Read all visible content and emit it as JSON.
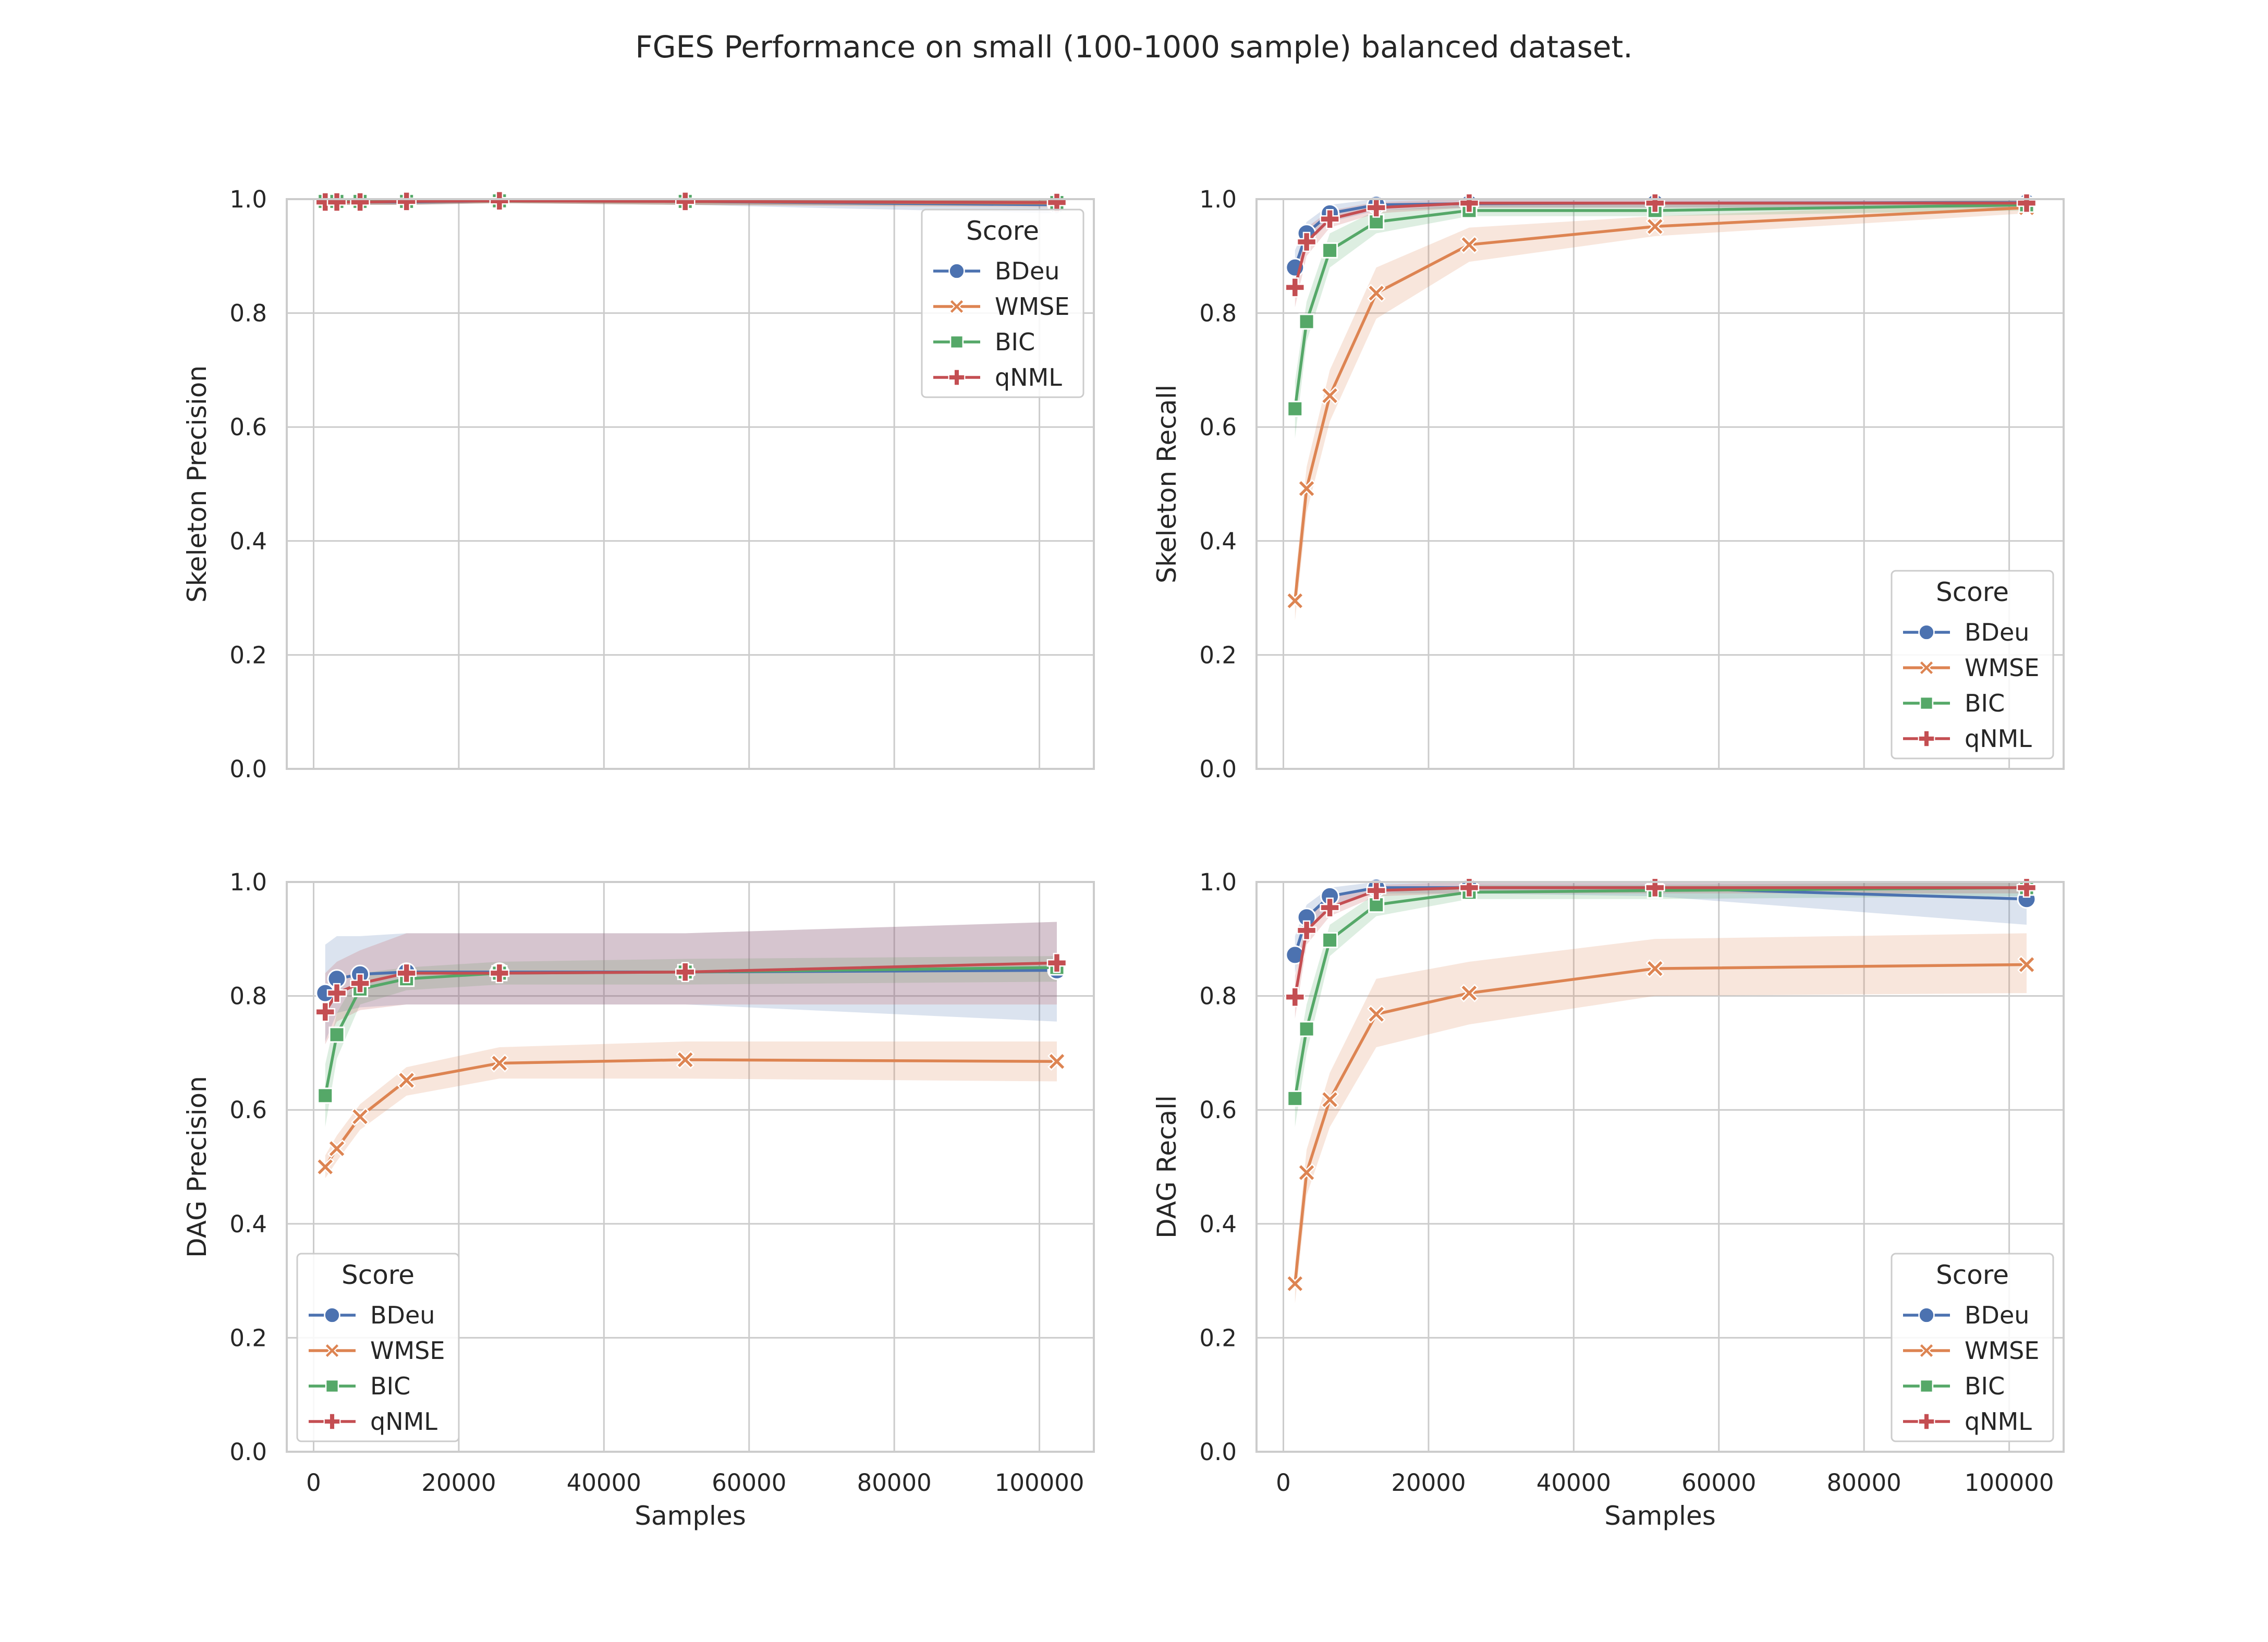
{
  "title": "FGES Performance on small (100-1000 sample) balanced dataset.",
  "colors": {
    "BDeu": "#4c72b0",
    "WMSE": "#dd8452",
    "BIC": "#55a868",
    "qNML": "#c44e52",
    "grid": "#cccccc",
    "frame": "#cccccc"
  },
  "chart_data": [
    {
      "type": "line",
      "ylabel": "Skeleton Precision",
      "xlabel": "",
      "xlim": [
        -3700,
        107500
      ],
      "ylim": [
        0,
        1
      ],
      "xticks": [
        0,
        20000,
        40000,
        60000,
        80000,
        100000
      ],
      "yticks": [
        "0.0",
        "0.2",
        "0.4",
        "0.6",
        "0.8",
        "1.0"
      ],
      "show_xtick_labels": false,
      "grid": true,
      "legend": {
        "title": "Score",
        "placement": "top-right"
      },
      "x": [
        1600,
        3200,
        6400,
        12800,
        25600,
        51200,
        102400
      ],
      "series": [
        {
          "name": "BDeu",
          "marker": "circle",
          "values": [
            0.995,
            0.995,
            0.995,
            0.995,
            0.997,
            0.996,
            0.99
          ],
          "ci_low": [
            0.99,
            0.99,
            0.99,
            0.99,
            0.993,
            0.99,
            0.975
          ],
          "ci_high": [
            1.0,
            1.0,
            1.0,
            1.0,
            1.0,
            1.0,
            1.0
          ]
        },
        {
          "name": "WMSE",
          "marker": "x",
          "values": [
            0.995,
            0.995,
            0.995,
            0.996,
            0.997,
            0.996,
            0.993
          ],
          "ci_low": [
            0.99,
            0.99,
            0.99,
            0.99,
            0.993,
            0.99,
            0.985
          ],
          "ci_high": [
            1.0,
            1.0,
            1.0,
            1.0,
            1.0,
            1.0,
            1.0
          ]
        },
        {
          "name": "BIC",
          "marker": "square",
          "values": [
            0.996,
            0.996,
            0.996,
            0.996,
            0.997,
            0.996,
            0.994
          ],
          "ci_low": [
            0.99,
            0.99,
            0.99,
            0.99,
            0.993,
            0.99,
            0.988
          ],
          "ci_high": [
            1.0,
            1.0,
            1.0,
            1.0,
            1.0,
            1.0,
            1.0
          ]
        },
        {
          "name": "qNML",
          "marker": "plus",
          "values": [
            0.995,
            0.995,
            0.995,
            0.996,
            0.997,
            0.996,
            0.994
          ],
          "ci_low": [
            0.99,
            0.99,
            0.99,
            0.99,
            0.993,
            0.99,
            0.988
          ],
          "ci_high": [
            1.0,
            1.0,
            1.0,
            1.0,
            1.0,
            1.0,
            1.0
          ]
        }
      ]
    },
    {
      "type": "line",
      "ylabel": "Skeleton Recall",
      "xlabel": "",
      "xlim": [
        -3700,
        107500
      ],
      "ylim": [
        0,
        1
      ],
      "xticks": [
        0,
        20000,
        40000,
        60000,
        80000,
        100000
      ],
      "yticks": [
        "0.0",
        "0.2",
        "0.4",
        "0.6",
        "0.8",
        "1.0"
      ],
      "show_xtick_labels": false,
      "grid": true,
      "legend": {
        "title": "Score",
        "placement": "bottom-right"
      },
      "x": [
        1600,
        3200,
        6400,
        12800,
        25600,
        51200,
        102400
      ],
      "series": [
        {
          "name": "BDeu",
          "marker": "circle",
          "values": [
            0.88,
            0.94,
            0.975,
            0.99,
            0.992,
            0.993,
            0.994
          ],
          "ci_low": [
            0.85,
            0.92,
            0.96,
            0.98,
            0.985,
            0.985,
            0.985
          ],
          "ci_high": [
            0.91,
            0.96,
            0.99,
            1.0,
            1.0,
            1.0,
            1.0
          ]
        },
        {
          "name": "WMSE",
          "marker": "x",
          "values": [
            0.295,
            0.492,
            0.655,
            0.835,
            0.92,
            0.952,
            0.985
          ],
          "ci_low": [
            0.26,
            0.45,
            0.61,
            0.79,
            0.89,
            0.935,
            0.975
          ],
          "ci_high": [
            0.33,
            0.53,
            0.7,
            0.88,
            0.95,
            0.97,
            0.995
          ]
        },
        {
          "name": "BIC",
          "marker": "square",
          "values": [
            0.632,
            0.785,
            0.91,
            0.96,
            0.98,
            0.98,
            0.99
          ],
          "ci_low": [
            0.58,
            0.75,
            0.88,
            0.94,
            0.97,
            0.97,
            0.98
          ],
          "ci_high": [
            0.68,
            0.82,
            0.94,
            0.98,
            0.99,
            0.99,
            1.0
          ]
        },
        {
          "name": "qNML",
          "marker": "plus",
          "values": [
            0.845,
            0.925,
            0.965,
            0.985,
            0.993,
            0.993,
            0.993
          ],
          "ci_low": [
            0.81,
            0.9,
            0.95,
            0.975,
            0.985,
            0.985,
            0.985
          ],
          "ci_high": [
            0.88,
            0.95,
            0.98,
            0.995,
            1.0,
            1.0,
            1.0
          ]
        }
      ]
    },
    {
      "type": "line",
      "ylabel": "DAG Precision",
      "xlabel": "Samples",
      "xlim": [
        -3700,
        107500
      ],
      "ylim": [
        0,
        1
      ],
      "xticks": [
        0,
        20000,
        40000,
        60000,
        80000,
        100000
      ],
      "yticks": [
        "0.0",
        "0.2",
        "0.4",
        "0.6",
        "0.8",
        "1.0"
      ],
      "show_xtick_labels": true,
      "grid": true,
      "legend": {
        "title": "Score",
        "placement": "bottom-left"
      },
      "x": [
        1600,
        3200,
        6400,
        12800,
        25600,
        51200,
        102400
      ],
      "series": [
        {
          "name": "BDeu",
          "marker": "circle",
          "values": [
            0.805,
            0.83,
            0.838,
            0.842,
            0.842,
            0.842,
            0.845
          ],
          "ci_low": [
            0.72,
            0.77,
            0.78,
            0.785,
            0.785,
            0.785,
            0.755
          ],
          "ci_high": [
            0.89,
            0.905,
            0.905,
            0.91,
            0.91,
            0.91,
            0.93
          ]
        },
        {
          "name": "WMSE",
          "marker": "x",
          "values": [
            0.5,
            0.532,
            0.588,
            0.652,
            0.682,
            0.688,
            0.685
          ],
          "ci_low": [
            0.48,
            0.51,
            0.565,
            0.625,
            0.655,
            0.655,
            0.65
          ],
          "ci_high": [
            0.52,
            0.555,
            0.61,
            0.675,
            0.71,
            0.72,
            0.72
          ]
        },
        {
          "name": "BIC",
          "marker": "square",
          "values": [
            0.625,
            0.732,
            0.812,
            0.83,
            0.84,
            0.842,
            0.85
          ],
          "ci_low": [
            0.57,
            0.69,
            0.785,
            0.81,
            0.82,
            0.82,
            0.825
          ],
          "ci_high": [
            0.68,
            0.77,
            0.84,
            0.85,
            0.86,
            0.865,
            0.87
          ]
        },
        {
          "name": "qNML",
          "marker": "plus",
          "values": [
            0.772,
            0.805,
            0.822,
            0.84,
            0.84,
            0.842,
            0.858
          ],
          "ci_low": [
            0.715,
            0.755,
            0.775,
            0.785,
            0.785,
            0.785,
            0.785
          ],
          "ci_high": [
            0.84,
            0.86,
            0.88,
            0.91,
            0.91,
            0.91,
            0.93
          ]
        }
      ]
    },
    {
      "type": "line",
      "ylabel": "DAG Recall",
      "xlabel": "Samples",
      "xlim": [
        -3700,
        107500
      ],
      "ylim": [
        0,
        1
      ],
      "xticks": [
        0,
        20000,
        40000,
        60000,
        80000,
        100000
      ],
      "yticks": [
        "0.0",
        "0.2",
        "0.4",
        "0.6",
        "0.8",
        "1.0"
      ],
      "show_xtick_labels": true,
      "grid": true,
      "legend": {
        "title": "Score",
        "placement": "bottom-right"
      },
      "x": [
        1600,
        3200,
        6400,
        12800,
        25600,
        51200,
        102400
      ],
      "series": [
        {
          "name": "BDeu",
          "marker": "circle",
          "values": [
            0.872,
            0.938,
            0.975,
            0.99,
            0.99,
            0.99,
            0.97
          ],
          "ci_low": [
            0.84,
            0.915,
            0.96,
            0.98,
            0.98,
            0.975,
            0.925
          ],
          "ci_high": [
            0.905,
            0.96,
            0.99,
            1.0,
            1.0,
            1.0,
            1.0
          ]
        },
        {
          "name": "WMSE",
          "marker": "x",
          "values": [
            0.295,
            0.49,
            0.618,
            0.768,
            0.805,
            0.848,
            0.855
          ],
          "ci_low": [
            0.26,
            0.45,
            0.57,
            0.71,
            0.75,
            0.8,
            0.805
          ],
          "ci_high": [
            0.33,
            0.53,
            0.665,
            0.83,
            0.86,
            0.9,
            0.91
          ]
        },
        {
          "name": "BIC",
          "marker": "square",
          "values": [
            0.62,
            0.742,
            0.898,
            0.96,
            0.982,
            0.985,
            0.99
          ],
          "ci_low": [
            0.57,
            0.7,
            0.87,
            0.94,
            0.97,
            0.97,
            0.975
          ],
          "ci_high": [
            0.67,
            0.785,
            0.925,
            0.98,
            0.995,
            0.995,
            1.0
          ]
        },
        {
          "name": "qNML",
          "marker": "plus",
          "values": [
            0.798,
            0.915,
            0.955,
            0.985,
            0.99,
            0.99,
            0.99
          ],
          "ci_low": [
            0.76,
            0.89,
            0.94,
            0.975,
            0.98,
            0.98,
            0.98
          ],
          "ci_high": [
            0.835,
            0.94,
            0.97,
            0.995,
            1.0,
            1.0,
            1.0
          ]
        }
      ]
    }
  ]
}
